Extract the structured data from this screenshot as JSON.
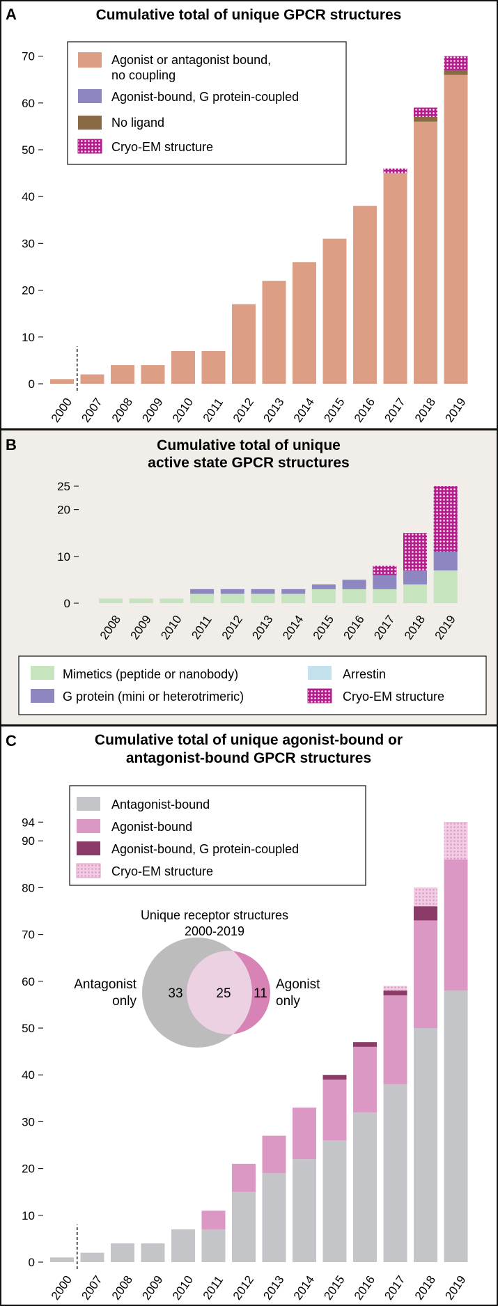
{
  "colors": {
    "salmon": "#dc9f85",
    "purple": "#8e86c0",
    "brown": "#8a6a42",
    "cryo_magenta": "#b51d8d",
    "mint": "#c6e4bd",
    "light_blue": "#c4e1ee",
    "gray": "#c4c5c8",
    "pink": "#dc98c4",
    "dark_plum": "#8b3b68",
    "cryo_light": "#f2cce3",
    "panel_b_bg": "#f1ede8",
    "venn_gray": "#bcbcbd",
    "venn_pink": "#d783b5",
    "venn_mid": "#ecd1e2"
  },
  "panels": {
    "a": {
      "letter": "A"
    },
    "b": {
      "letter": "B"
    },
    "c": {
      "letter": "C"
    }
  },
  "venn": {
    "title_line1": "Unique receptor structures",
    "title_line2": "2000-2019",
    "left_label_line1": "Antagonist",
    "left_label_line2": "only",
    "right_label_line1": "Agonist",
    "right_label_line2": "only",
    "left_count": "33",
    "overlap_count": "25",
    "right_count": "11"
  },
  "chart_data": [
    {
      "type": "bar",
      "stacked": true,
      "title": "Cumulative total of unique GPCR structures",
      "categories": [
        "2000",
        "2007",
        "2008",
        "2009",
        "2010",
        "2011",
        "2012",
        "2013",
        "2014",
        "2015",
        "2016",
        "2017",
        "2018",
        "2019"
      ],
      "axis_break_after": "2000",
      "ylim": [
        0,
        70
      ],
      "yticks": [
        0,
        10,
        20,
        30,
        40,
        50,
        60,
        70
      ],
      "legend": [
        {
          "label": "Agonist or antagonist bound,",
          "label2": "no coupling",
          "color_key": "salmon",
          "pattern": false
        },
        {
          "label": "Agonist-bound, G protein-coupled",
          "color_key": "purple",
          "pattern": false
        },
        {
          "label": "No ligand",
          "color_key": "brown",
          "pattern": false
        },
        {
          "label": "Cryo-EM structure",
          "color_key": "cryo_magenta",
          "pattern": true
        }
      ],
      "series": [
        {
          "name": "Agonist or antagonist bound, no coupling",
          "color_key": "salmon",
          "values": [
            1,
            2,
            4,
            4,
            7,
            7,
            17,
            22,
            26,
            31,
            38,
            45,
            56,
            66
          ]
        },
        {
          "name": "No ligand",
          "color_key": "brown",
          "values": [
            0,
            0,
            0,
            0,
            0,
            0,
            0,
            0,
            0,
            0,
            0,
            0,
            1,
            1
          ]
        },
        {
          "name": "Agonist-bound, G protein-coupled",
          "color_key": "purple",
          "values": [
            0,
            0,
            0,
            0,
            0,
            0,
            0,
            0,
            0,
            0,
            0,
            1,
            2,
            3
          ]
        }
      ],
      "cryo_em": [
        0,
        0,
        0,
        0,
        0,
        0,
        0,
        0,
        0,
        0,
        0,
        1,
        2,
        3
      ]
    },
    {
      "type": "bar",
      "stacked": true,
      "title": "Cumulative total of unique",
      "title2": "active state GPCR structures",
      "categories": [
        "2008",
        "2009",
        "2010",
        "2011",
        "2012",
        "2013",
        "2014",
        "2015",
        "2016",
        "2017",
        "2018",
        "2019"
      ],
      "ylim": [
        0,
        25
      ],
      "yticks": [
        0,
        10,
        20,
        25
      ],
      "legend": [
        {
          "label": "Mimetics (peptide or nanobody)",
          "color_key": "mint",
          "pattern": false
        },
        {
          "label": "Arrestin",
          "color_key": "light_blue",
          "pattern": false
        },
        {
          "label": "G protein (mini or heterotrimeric)",
          "color_key": "purple",
          "pattern": false
        },
        {
          "label": "Cryo-EM structure",
          "color_key": "cryo_magenta",
          "pattern": true
        }
      ],
      "series": [
        {
          "name": "Mimetics (peptide or nanobody)",
          "color_key": "mint",
          "values": [
            1,
            1,
            1,
            2,
            2,
            2,
            2,
            3,
            3,
            3,
            4,
            7
          ]
        },
        {
          "name": "G protein (mini or heterotrimeric)",
          "color_key": "purple",
          "values": [
            0,
            0,
            0,
            1,
            1,
            1,
            1,
            1,
            2,
            4,
            10,
            16
          ]
        },
        {
          "name": "Arrestin",
          "color_key": "light_blue",
          "values": [
            0,
            0,
            0,
            0,
            0,
            0,
            0,
            0,
            0,
            1,
            1,
            2
          ]
        }
      ],
      "cryo_em": [
        0,
        0,
        0,
        0,
        0,
        0,
        0,
        0,
        0,
        2,
        8,
        14
      ]
    },
    {
      "type": "bar",
      "stacked": true,
      "title": "Cumulative total of unique agonist-bound or",
      "title2": "antagonist-bound GPCR structures",
      "categories": [
        "2000",
        "2007",
        "2008",
        "2009",
        "2010",
        "2011",
        "2012",
        "2013",
        "2014",
        "2015",
        "2016",
        "2017",
        "2018",
        "2019"
      ],
      "axis_break_after": "2000",
      "ylim": [
        0,
        94
      ],
      "yticks": [
        0,
        10,
        20,
        30,
        40,
        50,
        60,
        70,
        80,
        90,
        94
      ],
      "legend": [
        {
          "label": "Antagonist-bound",
          "color_key": "gray",
          "pattern": false
        },
        {
          "label": "Agonist-bound",
          "color_key": "pink",
          "pattern": false
        },
        {
          "label": "Agonist-bound, G protein-coupled",
          "color_key": "dark_plum",
          "pattern": false
        },
        {
          "label": "Cryo-EM structure",
          "color_key": "cryo_light",
          "pattern": true
        }
      ],
      "series": [
        {
          "name": "Antagonist-bound",
          "color_key": "gray",
          "values": [
            1,
            2,
            4,
            4,
            7,
            7,
            15,
            19,
            22,
            26,
            32,
            38,
            50,
            58
          ]
        },
        {
          "name": "Agonist-bound",
          "color_key": "pink",
          "values": [
            0,
            0,
            0,
            0,
            0,
            4,
            6,
            8,
            11,
            13,
            14,
            19,
            23,
            28
          ]
        },
        {
          "name": "Agonist-bound, G protein-coupled",
          "color_key": "dark_plum",
          "values": [
            0,
            0,
            0,
            0,
            0,
            0,
            0,
            0,
            0,
            1,
            1,
            2,
            7,
            8
          ]
        }
      ],
      "cryo_em": [
        0,
        0,
        0,
        0,
        0,
        0,
        0,
        0,
        0,
        0,
        0,
        1,
        4,
        8
      ]
    }
  ]
}
